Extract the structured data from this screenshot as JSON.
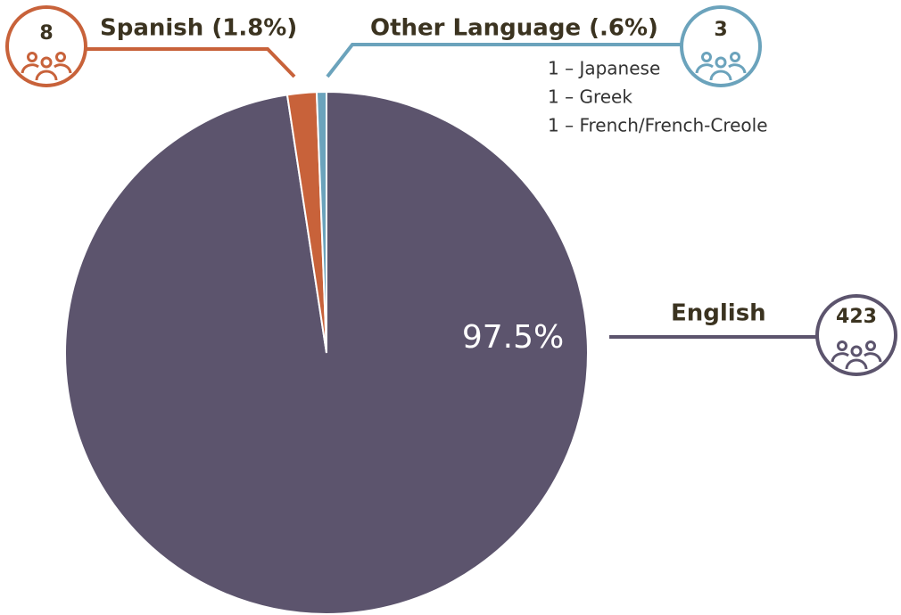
{
  "chart_data": {
    "type": "pie",
    "categories": [
      "English",
      "Spanish (1.8%)",
      "Other Language (.6%)"
    ],
    "values": [
      97.5,
      1.8,
      0.6
    ],
    "value_labels": [
      "97.5%",
      null,
      null
    ],
    "colors": [
      "#5c546d",
      "#c8623a",
      "#6ba3bc"
    ],
    "counts": [
      423,
      8,
      3
    ],
    "other_details": [
      "1 – Japanese",
      "1 – Greek",
      "1 – French/French-Creole"
    ]
  }
}
